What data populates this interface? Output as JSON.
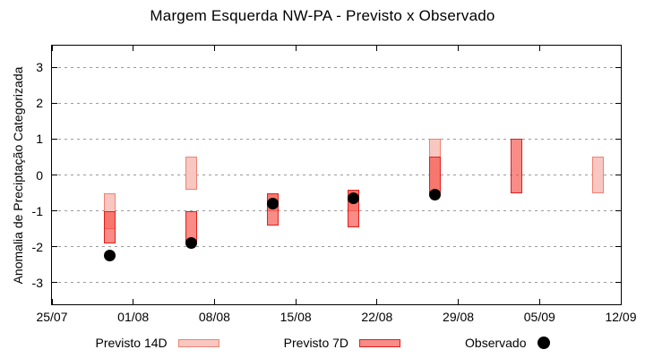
{
  "title": "Margem Esquerda NW-PA - Previsto x Observado",
  "legend": {
    "items": [
      {
        "label": "Previsto 14D",
        "swatch": "range-bar-light"
      },
      {
        "label": "Previsto 7D",
        "swatch": "range-bar-red"
      },
      {
        "label": "Observado",
        "swatch": "black-dot"
      }
    ]
  },
  "colors": {
    "previsto_14d_fill": "#f9c7c1",
    "previsto_14d_border": "#ee8273",
    "previsto_7d_fill": "#f98c86",
    "previsto_7d_border": "#df1f1f",
    "overlap_fill": "#f7776e",
    "observado": "#000000",
    "grid": "#9b9b9b"
  },
  "chart_data": {
    "type": "bar",
    "subtype": "forecast-range-bars-with-observed-points",
    "title": "Margem Esquerda NW-PA - Previsto x Observado",
    "xlabel": "",
    "ylabel": "Anomalia de Preciptação Categorizada",
    "ylim": [
      -3.6,
      3.6
    ],
    "yticks": [
      3,
      2,
      1,
      0,
      -1,
      -2,
      -3
    ],
    "xtick_labels": [
      "25/07",
      "01/08",
      "08/08",
      "15/08",
      "22/08",
      "29/08",
      "05/09",
      "12/09"
    ],
    "xtick_days": [
      0,
      7,
      14,
      21,
      28,
      35,
      42,
      49
    ],
    "xlim_days": [
      0,
      49
    ],
    "grid": "horizontal-dashed",
    "legend_position": "below",
    "series_names": [
      "Previsto 14D",
      "Previsto 7D",
      "Observado"
    ],
    "clusters": [
      {
        "date": "30/07",
        "day": 5,
        "previsto_14d": [
          -1.5,
          -0.5
        ],
        "previsto_7d": [
          -1.9,
          -1.0
        ],
        "observado": -2.25
      },
      {
        "date": "06/08",
        "day": 12,
        "previsto_14d": [
          -0.4,
          0.5
        ],
        "previsto_7d": [
          -1.9,
          -1.0
        ],
        "observado": -1.9
      },
      {
        "date": "13/08",
        "day": 19,
        "previsto_14d": [
          -1.0,
          -0.5
        ],
        "previsto_7d": [
          -1.4,
          -0.5
        ],
        "observado": -0.8
      },
      {
        "date": "20/08",
        "day": 26,
        "previsto_14d": [
          -1.0,
          -0.4
        ],
        "previsto_7d": [
          -1.45,
          -0.4
        ],
        "observado": -0.65
      },
      {
        "date": "27/08",
        "day": 33,
        "previsto_14d": [
          -0.5,
          1.0
        ],
        "previsto_7d": [
          -0.5,
          0.5
        ],
        "observado": -0.55
      },
      {
        "date": "03/09",
        "day": 40,
        "previsto_14d": null,
        "previsto_7d": [
          -0.5,
          1.0
        ],
        "observado": null
      },
      {
        "date": "10/09",
        "day": 47,
        "previsto_14d": [
          -0.5,
          0.5
        ],
        "previsto_7d": null,
        "observado": null
      }
    ]
  }
}
